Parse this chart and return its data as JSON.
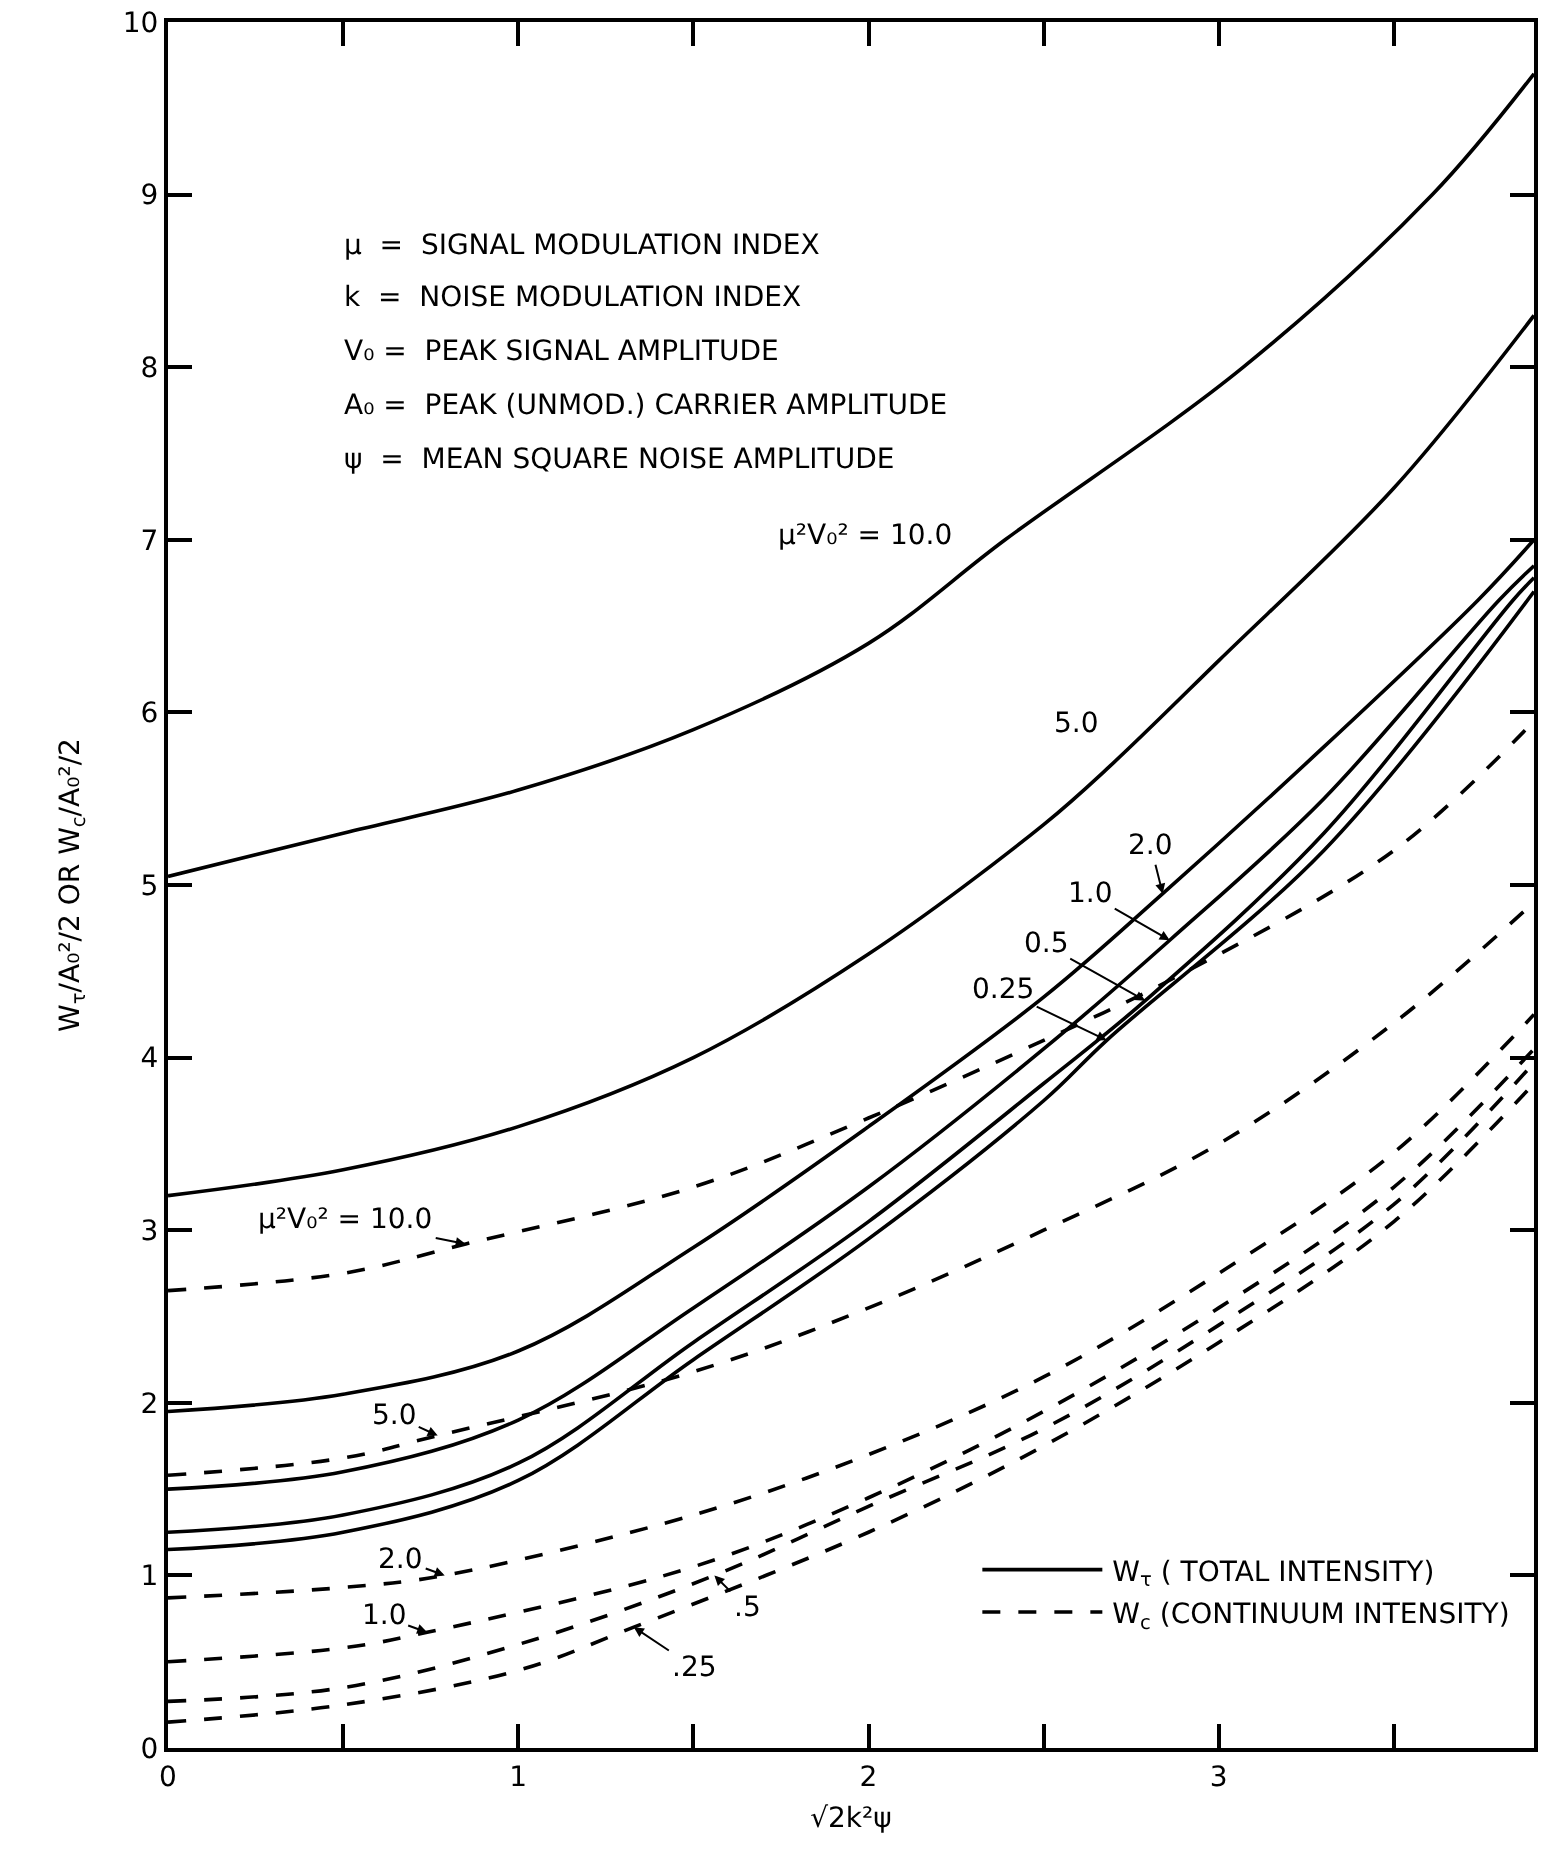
{
  "chart_data": {
    "type": "line",
    "xlabel": "√2k²ψ",
    "ylabel": "W$_{τ}$/A₀²/2 OR W$_{c}$/A₀²/2",
    "xlim": [
      0,
      3.9
    ],
    "xticks": [
      0,
      {
        "value": 0.5,
        "label": null
      },
      1,
      {
        "value": 1.5,
        "label": null
      },
      2,
      {
        "value": 2.5,
        "label": null
      },
      3,
      {
        "value": 3.5,
        "label": null
      }
    ],
    "ylim": [
      0,
      10
    ],
    "yticks": [
      0,
      1,
      2,
      3,
      4,
      5,
      6,
      7,
      8,
      9,
      10
    ],
    "grid": false,
    "marker": "none",
    "legend": "bottom right",
    "series": [
      {
        "name": "W$_{τ}$ ( TOTAL INTENSITY)",
        "color": "#000000",
        "line_style": "solid",
        "x": [
          0,
          0.5,
          1,
          1.5,
          2,
          2.39,
          3.07,
          3.61,
          3.9
        ],
        "values": [
          5.05,
          5.3,
          5.55,
          5.9,
          6.4,
          7.0,
          8.0,
          9.0,
          9.7
        ]
      },
      {
        "color": "#000000",
        "line_style": "solid",
        "x": [
          0,
          0.5,
          1,
          1.5,
          2,
          2.5,
          2.69,
          3,
          3.5,
          3.9
        ],
        "values": [
          3.2,
          3.35,
          3.6,
          4.0,
          4.6,
          5.35,
          5.69,
          6.3,
          7.3,
          8.3
        ]
      },
      {
        "color": "#000000",
        "line_style": "solid",
        "x": [
          0,
          0.5,
          1,
          1.5,
          2,
          2.5,
          2.84,
          3.3,
          3.74,
          3.9
        ],
        "values": [
          1.95,
          2.05,
          2.3,
          2.9,
          3.6,
          4.35,
          4.95,
          5.8,
          6.65,
          7.0
        ]
      },
      {
        "color": "#000000",
        "line_style": "solid",
        "x": [
          0,
          0.5,
          1,
          1.5,
          2,
          2.5,
          2.86,
          3.3,
          3.8,
          3.9
        ],
        "values": [
          1.5,
          1.6,
          1.9,
          2.55,
          3.25,
          4.05,
          4.68,
          5.5,
          6.65,
          6.85
        ]
      },
      {
        "color": "#000000",
        "line_style": "solid",
        "x": [
          0,
          0.5,
          1,
          1.5,
          2,
          2.5,
          2.79,
          3.3,
          3.84,
          3.9
        ],
        "values": [
          1.25,
          1.35,
          1.65,
          2.35,
          3.05,
          3.85,
          4.33,
          5.3,
          6.65,
          6.78
        ]
      },
      {
        "color": "#000000",
        "line_style": "solid",
        "x": [
          0,
          0.5,
          1,
          1.5,
          2,
          2.5,
          2.68,
          3.3,
          3.9
        ],
        "values": [
          1.15,
          1.25,
          1.55,
          2.25,
          2.95,
          3.75,
          4.1,
          5.2,
          6.7
        ]
      },
      {
        "name": "W$_{c}$ (CONTINUUM INTENSITY)",
        "color": "#000000",
        "line_style": "dashed",
        "x": [
          0,
          0.5,
          0.85,
          1.5,
          2,
          2.5,
          2.89,
          3.5,
          3.9
        ],
        "values": [
          2.65,
          2.75,
          2.92,
          3.25,
          3.65,
          4.1,
          4.48,
          5.2,
          5.95
        ]
      },
      {
        "color": "#000000",
        "line_style": "dashed",
        "x": [
          0,
          0.5,
          0.77,
          1.5,
          2,
          2.5,
          3,
          3.5,
          3.9
        ],
        "values": [
          1.58,
          1.68,
          1.81,
          2.18,
          2.55,
          3.0,
          3.5,
          4.2,
          4.9
        ]
      },
      {
        "color": "#000000",
        "line_style": "dashed",
        "x": [
          0,
          0.5,
          0.79,
          1.5,
          2,
          2.5,
          3,
          3.5,
          3.9
        ],
        "values": [
          0.87,
          0.93,
          1.0,
          1.35,
          1.7,
          2.15,
          2.75,
          3.45,
          4.25
        ]
      },
      {
        "color": "#000000",
        "line_style": "dashed",
        "x": [
          0,
          0.5,
          0.74,
          1.5,
          2,
          2.5,
          3,
          3.5,
          3.9
        ],
        "values": [
          0.5,
          0.58,
          0.67,
          1.05,
          1.45,
          1.95,
          2.55,
          3.25,
          4.05
        ]
      },
      {
        "color": "#000000",
        "line_style": "dashed",
        "x": [
          0,
          0.5,
          1,
          1.56,
          2,
          2.5,
          3,
          3.5,
          3.9
        ],
        "values": [
          0.27,
          0.35,
          0.6,
          1.0,
          1.4,
          1.85,
          2.45,
          3.15,
          3.97
        ]
      },
      {
        "color": "#000000",
        "line_style": "dashed",
        "x": [
          0,
          0.5,
          1,
          1.33,
          2,
          2.5,
          3,
          3.5,
          3.9
        ],
        "values": [
          0.15,
          0.25,
          0.45,
          0.7,
          1.25,
          1.75,
          2.35,
          3.05,
          3.85
        ]
      }
    ],
    "annotations": [
      "μ  =  SIGNAL MODULATION INDEX",
      "k  =  NOISE MODULATION INDEX",
      "V₀ =  PEAK SIGNAL AMPLITUDE",
      "A₀ =  PEAK (UNMOD.) CARRIER AMPLITUDE",
      "ψ  =  MEAN SQUARE NOISE AMPLITUDE",
      {
        "text": "μ²V₀² = 10.0",
        "x": 2.39,
        "y": 7.0
      },
      {
        "text": "5.0",
        "x": 2.69,
        "y": 5.69
      },
      {
        "text": "2.0",
        "x": 2.84,
        "y": 4.95
      },
      {
        "text": "1.0",
        "x": 2.86,
        "y": 4.68
      },
      {
        "text": "0.5",
        "x": 2.79,
        "y": 4.33
      },
      {
        "text": "0.25",
        "x": 2.68,
        "y": 4.1
      },
      {
        "text": "μ²V₀² = 10.0",
        "x": 0.85,
        "y": 2.92
      },
      {
        "text": "5.0",
        "x": 0.77,
        "y": 1.81
      },
      {
        "text": "2.0",
        "x": 0.79,
        "y": 1.0
      },
      {
        "text": "1.0",
        "x": 0.74,
        "y": 0.67
      },
      {
        "text": ".5",
        "x": 1.56,
        "y": 1.0
      },
      {
        "text": ".25",
        "x": 1.33,
        "y": 0.7
      }
    ]
  }
}
